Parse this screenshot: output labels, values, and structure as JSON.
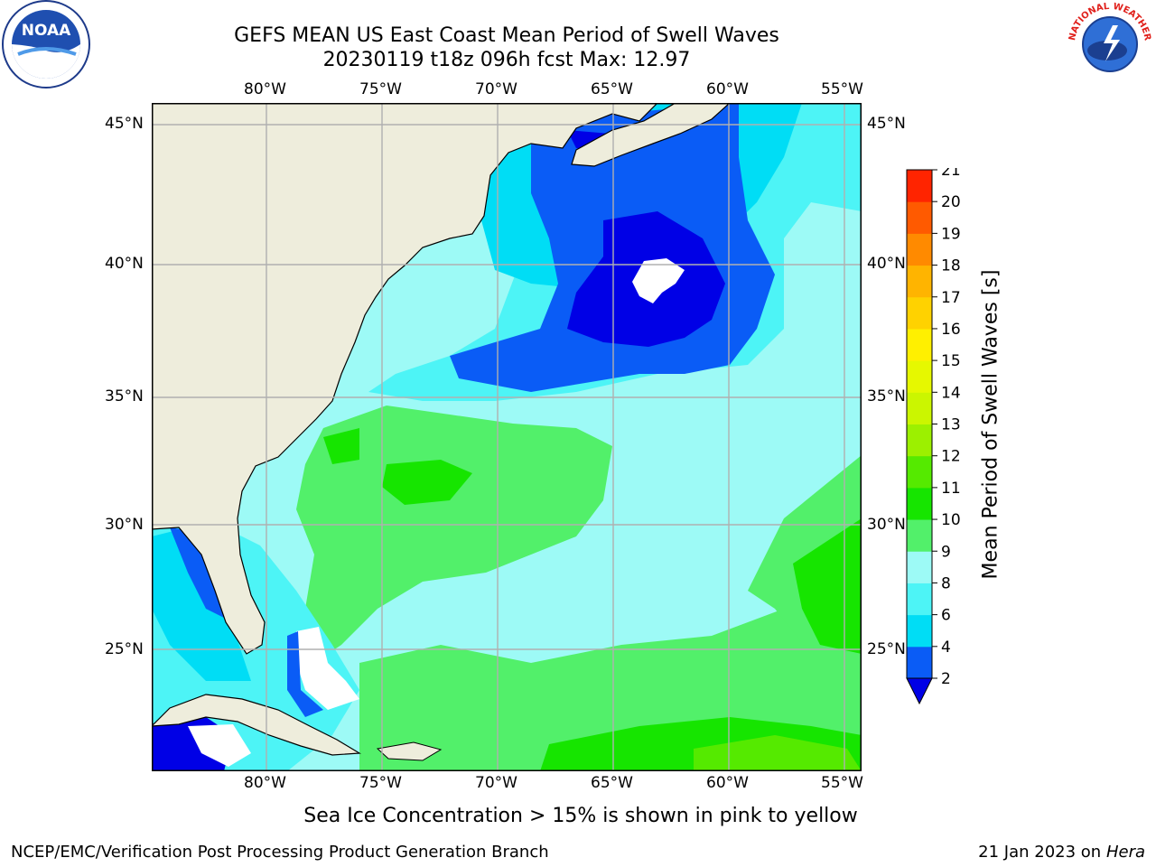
{
  "header": {
    "title_line1": "GEFS MEAN US East Coast Mean Period of Swell Waves",
    "title_line2": "20230119 t18z 096h fcst   Max: 12.97"
  },
  "map": {
    "lon_labels": [
      "80°W",
      "75°W",
      "70°W",
      "65°W",
      "60°W",
      "55°W"
    ],
    "lat_labels": [
      "45°N",
      "40°N",
      "35°N",
      "30°N",
      "25°N"
    ],
    "colors": {
      "land": "#eeeddc",
      "coast": "#000000",
      "grid": "#b0b0b0",
      "no_data": "#ffffff"
    }
  },
  "colorbar": {
    "label": "Mean Period of Swell Waves [s]",
    "ticks": [
      "2",
      "4",
      "6",
      "8",
      "9",
      "10",
      "11",
      "12",
      "13",
      "14",
      "15",
      "16",
      "17",
      "18",
      "19",
      "20",
      "21"
    ],
    "colors": [
      "#0a5cf6",
      "#00ddf5",
      "#4df4f6",
      "#9dfaf6",
      "#52f06a",
      "#16e500",
      "#55ea00",
      "#9cf000",
      "#cbf600",
      "#e6f800",
      "#fff000",
      "#ffd200",
      "#ffb400",
      "#ff8a00",
      "#ff5a00",
      "#ff2400"
    ],
    "under_color": "#0000e6"
  },
  "footer": {
    "note": "Sea Ice Concentration > 15% is shown in pink to yellow",
    "left": "NCEP/EMC/Verification Post Processing Product Generation Branch",
    "date": "21 Jan 2023 on",
    "machine": "Hera"
  },
  "logos": {
    "noaa_text": "NOAA",
    "nws_text": "NATIONAL WEATHER SERVICE"
  }
}
